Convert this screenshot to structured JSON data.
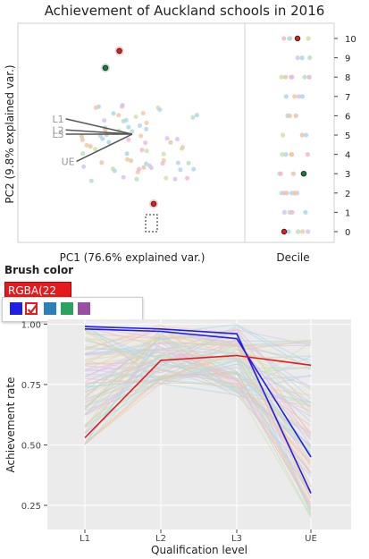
{
  "title": "Achievement of Auckland schools in 2016",
  "brush": {
    "heading": "Brush color",
    "value": "RGBA(22",
    "swatches": [
      {
        "name": "blue",
        "color": "#1f1fe8",
        "selected": false
      },
      {
        "name": "red",
        "color": "#e41a1c",
        "selected": true
      },
      {
        "name": "teal",
        "color": "#2c7fb8",
        "selected": false
      },
      {
        "name": "green",
        "color": "#2ca25f",
        "selected": false
      },
      {
        "name": "purple",
        "color": "#984ea3",
        "selected": false
      }
    ]
  },
  "chart_data": [
    {
      "type": "scatter",
      "xlabel": "PC1 (76.6% explained var.)",
      "ylabel": "PC2 (9.8% explained var.)",
      "biplot_vectors": [
        {
          "label": "L1",
          "x": -0.62,
          "y": 0.18
        },
        {
          "label": "L2",
          "x": -0.62,
          "y": 0.05
        },
        {
          "label": "L3",
          "x": -0.62,
          "y": 0.0
        },
        {
          "label": "UE",
          "x": -0.52,
          "y": -0.32
        }
      ],
      "points_sample": [
        {
          "x": -0.12,
          "y": 0.98,
          "decile": 10,
          "highlight": "red"
        },
        {
          "x": -0.25,
          "y": 0.78,
          "decile": 9,
          "highlight": "green"
        },
        {
          "x": 0.2,
          "y": -0.82,
          "decile": 0,
          "highlight": "red"
        }
      ]
    },
    {
      "type": "strip",
      "xlabel": "Decile",
      "y": [
        0,
        1,
        2,
        3,
        4,
        5,
        6,
        7,
        8,
        9,
        10
      ],
      "tick_labels": [
        "0",
        "1",
        "2",
        "3",
        "4",
        "5",
        "6",
        "7",
        "8",
        "9",
        "10"
      ]
    },
    {
      "type": "line",
      "xlabel": "Qualification level",
      "ylabel": "Achievement rate",
      "categories": [
        "L1",
        "L2",
        "L3",
        "UE"
      ],
      "ylim": [
        0.15,
        1.02
      ],
      "yticks": [
        "0.25",
        "0.50",
        "0.75",
        "1.00"
      ],
      "grid": true,
      "highlighted": [
        {
          "color": "#1f1fe8",
          "values": [
            0.99,
            0.98,
            0.96,
            0.3
          ]
        },
        {
          "color": "#1f1fe8",
          "values": [
            0.98,
            0.97,
            0.94,
            0.45
          ]
        },
        {
          "color": "#e41a1c",
          "values": [
            0.53,
            0.85,
            0.87,
            0.83
          ]
        }
      ]
    }
  ]
}
